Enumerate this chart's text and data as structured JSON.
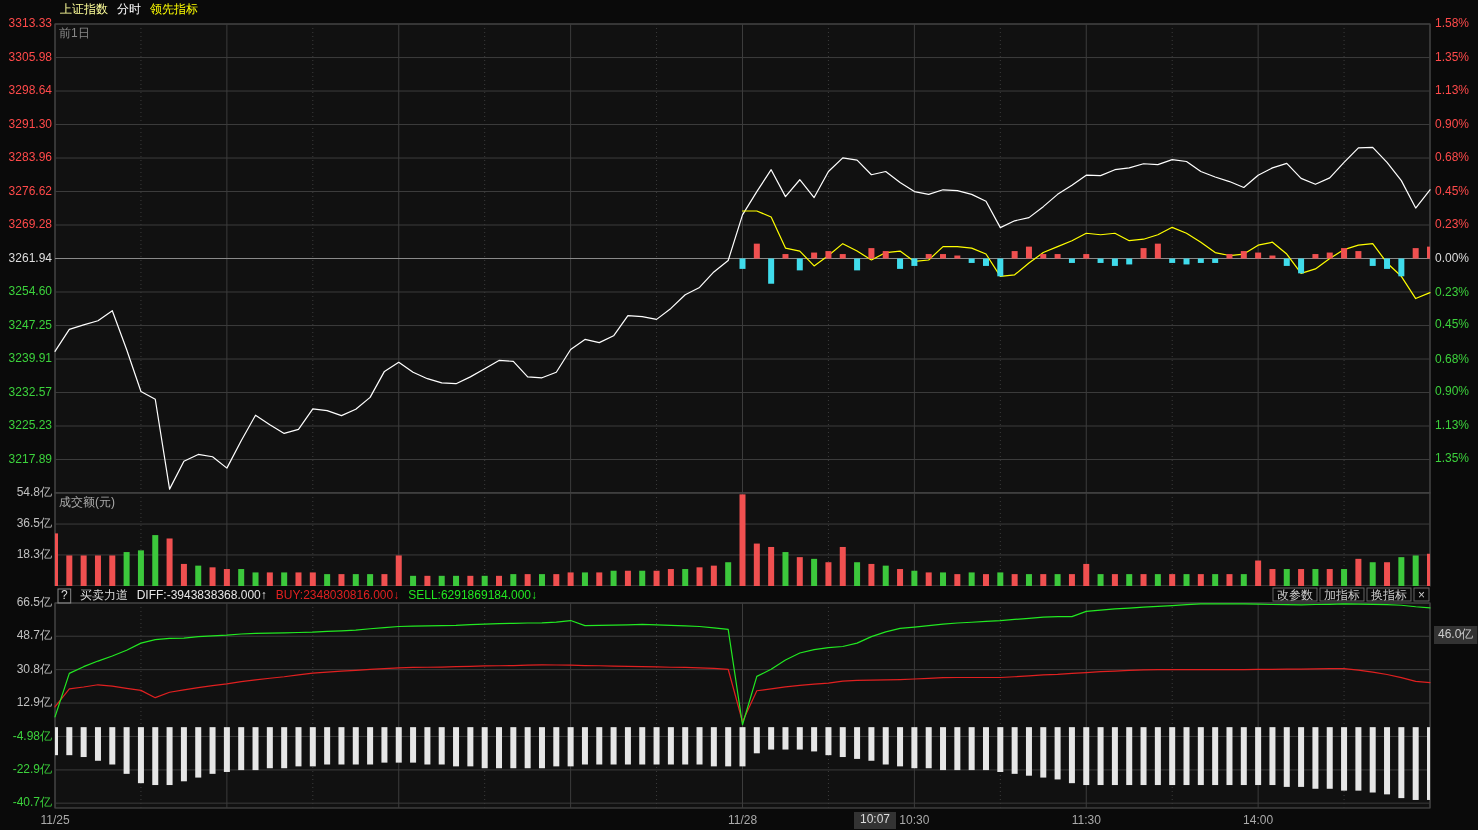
{
  "chart_data": [
    {
      "type": "line",
      "title": "上证指数",
      "legend": "top",
      "grid": true,
      "annotations": [
        "前1日"
      ],
      "tick_labels": "y",
      "categories": [
        null,
        null,
        null,
        null,
        null,
        null,
        null,
        null,
        null,
        null,
        null,
        null,
        null,
        null,
        null,
        null,
        null,
        null,
        null,
        null,
        null,
        null,
        null,
        null,
        null,
        null,
        null,
        null,
        null,
        null,
        null,
        null,
        null,
        null,
        null,
        null,
        null,
        null,
        null,
        null,
        null,
        null,
        null,
        null,
        null,
        null,
        null,
        null,
        null,
        null,
        null,
        null,
        null,
        null,
        null,
        null,
        null,
        null,
        null,
        null,
        null,
        null,
        null,
        null,
        null,
        null,
        null,
        null,
        null,
        null,
        null,
        null,
        null,
        null,
        null,
        null,
        null,
        null,
        null,
        null,
        null,
        null,
        null,
        null,
        null,
        null,
        null,
        null,
        null,
        null,
        null,
        null,
        null,
        null,
        null,
        null,
        null
      ],
      "ylim": [
        3210.55,
        3313.33
      ],
      "yticks": [
        {
          "value": 3313.33,
          "label": "3313.33"
        },
        {
          "value": 3305.98,
          "label": "3305.98"
        },
        {
          "value": 3298.64,
          "label": "3298.64"
        },
        {
          "value": 3291.3,
          "label": "3291.30"
        },
        {
          "value": 3283.96,
          "label": "3283.96"
        },
        {
          "value": 3276.62,
          "label": "3276.62"
        },
        {
          "value": 3269.28,
          "label": "3269.28"
        },
        {
          "value": 3261.94,
          "label": "3261.94"
        },
        {
          "value": 3254.6,
          "label": "3254.60"
        },
        {
          "value": 3247.25,
          "label": "3247.25"
        },
        {
          "value": 3239.91,
          "label": "3239.91"
        },
        {
          "value": 3232.57,
          "label": "3232.57"
        },
        {
          "value": 3225.23,
          "label": "3225.23"
        },
        {
          "value": 3217.89,
          "label": "3217.89"
        }
      ],
      "y2lim": [
        -1.58,
        1.58
      ],
      "y2ticks": [
        {
          "value": 1.58,
          "label": "1.58%"
        },
        {
          "value": 1.35,
          "label": "1.35%"
        },
        {
          "value": 1.13,
          "label": "1.13%"
        },
        {
          "value": 0.9,
          "label": "0.90%"
        },
        {
          "value": 0.68,
          "label": "0.68%"
        },
        {
          "value": 0.45,
          "label": "0.45%"
        },
        {
          "value": 0.23,
          "label": "0.23%"
        },
        {
          "value": 0,
          "label": "0.00%"
        },
        {
          "value": -0.23,
          "label": "0.23%"
        },
        {
          "value": -0.45,
          "label": "0.45%"
        },
        {
          "value": -0.68,
          "label": "0.68%"
        },
        {
          "value": -0.9,
          "label": "0.90%"
        },
        {
          "value": -1.13,
          "label": "1.13%"
        },
        {
          "value": -1.35,
          "label": "1.35%"
        }
      ],
      "ref_lines": [
        {
          "axis": "y",
          "value": 3261.94,
          "color": "#8a8a8a"
        }
      ],
      "series": [
        {
          "name": "分时",
          "color": "#ffffff",
          "values": [
            3241.6,
            3246.4,
            3247.4,
            3248.3,
            3250.5,
            3242.0,
            3232.8,
            3231.1,
            3211.4,
            3217.5,
            3219.0,
            3218.5,
            3216.0,
            3222.0,
            3227.6,
            3225.5,
            3223.6,
            3224.5,
            3229.0,
            3228.6,
            3227.5,
            3228.9,
            3231.5,
            3237.2,
            3239.2,
            3237.0,
            3235.6,
            3234.7,
            3234.5,
            3236.0,
            3237.8,
            3239.6,
            3239.4,
            3236.0,
            3235.8,
            3237.0,
            3242.0,
            3244.2,
            3243.5,
            3245.0,
            3249.4,
            3249.2,
            3248.6,
            3251.0,
            3254.0,
            3255.6,
            3259.0,
            3261.5,
            3271.5,
            3276.6,
            3281.4,
            3275.5,
            3279.2,
            3275.3,
            3281.0,
            3284.0,
            3283.5,
            3280.3,
            3281.0,
            3278.6,
            3276.6,
            3276.0,
            3277.0,
            3276.8,
            3276.0,
            3274.5,
            3268.7,
            3270.2,
            3270.9,
            3273.3,
            3276.0,
            3278.0,
            3280.2,
            3280.1,
            3281.4,
            3281.8,
            3282.7,
            3282.5,
            3283.6,
            3283.2,
            3281.0,
            3279.8,
            3278.8,
            3277.5,
            3280.2,
            3281.8,
            3282.8,
            3279.5,
            3278.2,
            3279.6,
            3283.0,
            3286.2,
            3286.3,
            3283.0,
            3279.0,
            3273.0,
            3277.0
          ]
        },
        {
          "name": "领先指标",
          "axis": "y2",
          "color": "#ffff00",
          "values": [
            null,
            null,
            null,
            null,
            null,
            null,
            null,
            null,
            null,
            null,
            null,
            null,
            null,
            null,
            null,
            null,
            null,
            null,
            null,
            null,
            null,
            null,
            null,
            null,
            null,
            null,
            null,
            null,
            null,
            null,
            null,
            null,
            null,
            null,
            null,
            null,
            null,
            null,
            null,
            null,
            null,
            null,
            null,
            null,
            null,
            null,
            null,
            null,
            0.32,
            0.32,
            0.28,
            0.07,
            0.05,
            -0.05,
            0.02,
            0.1,
            0.05,
            -0.01,
            0.04,
            0.05,
            -0.02,
            -0.01,
            0.08,
            0.08,
            0.07,
            0.03,
            -0.12,
            -0.11,
            -0.03,
            0.04,
            0.08,
            0.12,
            0.17,
            0.16,
            0.17,
            0.12,
            0.13,
            0.16,
            0.21,
            0.17,
            0.11,
            0.04,
            0.02,
            0.03,
            0.09,
            0.11,
            0.03,
            -0.1,
            -0.07,
            0.0,
            0.06,
            0.09,
            0.1,
            -0.03,
            -0.12,
            -0.27,
            -0.23
          ]
        },
        {
          "type": "bar",
          "axis": "y2",
          "color": "#f05050",
          "values": [
            null,
            null,
            null,
            null,
            null,
            null,
            null,
            null,
            null,
            null,
            null,
            null,
            null,
            null,
            null,
            null,
            null,
            null,
            null,
            null,
            null,
            null,
            null,
            null,
            null,
            null,
            null,
            null,
            null,
            null,
            null,
            null,
            null,
            null,
            null,
            null,
            null,
            null,
            null,
            null,
            null,
            null,
            null,
            null,
            null,
            null,
            null,
            null,
            null,
            0.1,
            null,
            0.03,
            null,
            0.04,
            0.05,
            0.03,
            null,
            0.07,
            0.05,
            null,
            null,
            0.03,
            0.03,
            0.02,
            null,
            null,
            null,
            0.05,
            0.08,
            0.03,
            0.03,
            null,
            0.03,
            null,
            null,
            null,
            0.07,
            0.1,
            null,
            null,
            null,
            null,
            0.03,
            0.05,
            0.04,
            0.02,
            null,
            null,
            0.03,
            0.04,
            0.07,
            0.05,
            null,
            null,
            null,
            0.07,
            0.08
          ]
        },
        {
          "type": "bar",
          "axis": "y2",
          "color": "#40dcec",
          "values": [
            null,
            null,
            null,
            null,
            null,
            null,
            null,
            null,
            null,
            null,
            null,
            null,
            null,
            null,
            null,
            null,
            null,
            null,
            null,
            null,
            null,
            null,
            null,
            null,
            null,
            null,
            null,
            null,
            null,
            null,
            null,
            null,
            null,
            null,
            null,
            null,
            null,
            null,
            null,
            null,
            null,
            null,
            null,
            null,
            null,
            null,
            null,
            null,
            -0.07,
            null,
            -0.17,
            null,
            -0.08,
            null,
            null,
            null,
            -0.08,
            null,
            null,
            -0.07,
            -0.05,
            null,
            null,
            null,
            -0.03,
            -0.05,
            -0.12,
            null,
            null,
            null,
            null,
            -0.03,
            null,
            -0.03,
            -0.05,
            -0.04,
            null,
            null,
            -0.03,
            -0.04,
            -0.03,
            -0.03,
            null,
            null,
            null,
            null,
            -0.05,
            -0.1,
            null,
            null,
            null,
            null,
            -0.05,
            -0.07,
            -0.12,
            null,
            null
          ]
        }
      ]
    },
    {
      "type": "bar",
      "title": "成交额(元)",
      "grid": true,
      "tick_labels": "y",
      "categories": [
        null,
        null,
        null,
        null,
        null,
        null,
        null,
        null,
        null,
        null,
        null,
        null,
        null,
        null,
        null,
        null,
        null,
        null,
        null,
        null,
        null,
        null,
        null,
        null,
        null,
        null,
        null,
        null,
        null,
        null,
        null,
        null,
        null,
        null,
        null,
        null,
        null,
        null,
        null,
        null,
        null,
        null,
        null,
        null,
        null,
        null,
        null,
        null,
        null,
        null,
        null,
        null,
        null,
        null,
        null,
        null,
        null,
        null,
        null,
        null,
        null,
        null,
        null,
        null,
        null,
        null,
        null,
        null,
        null,
        null,
        null,
        null,
        null,
        null,
        null,
        null,
        null,
        null,
        null,
        null,
        null,
        null,
        null,
        null,
        null,
        null,
        null,
        null,
        null,
        null,
        null,
        null,
        null,
        null,
        null,
        null,
        null
      ],
      "ylim": [
        0,
        54.8
      ],
      "yticks": [
        {
          "value": 18.3,
          "label": "18.3亿"
        },
        {
          "value": 36.5,
          "label": "36.5亿"
        },
        {
          "value": 54.8,
          "label": "54.8亿"
        }
      ],
      "values": [
        31,
        18,
        18,
        18,
        18,
        20,
        21,
        30,
        28,
        13,
        12,
        11,
        10,
        10,
        8,
        8,
        8,
        8,
        8,
        7,
        7,
        7,
        7,
        7,
        18,
        6,
        6,
        6,
        6,
        6,
        6,
        6,
        7,
        7,
        7,
        7,
        8,
        8,
        8,
        9,
        9,
        9,
        9,
        10,
        10,
        11,
        12,
        14,
        54,
        25,
        23,
        20,
        17,
        16,
        14,
        23,
        14,
        13,
        12,
        10,
        9,
        8,
        8,
        7,
        8,
        7,
        8,
        7,
        7,
        7,
        7,
        7,
        13,
        7,
        7,
        7,
        7,
        7,
        7,
        7,
        7,
        7,
        7,
        7,
        15,
        10,
        10,
        10,
        10,
        10,
        10,
        16,
        14,
        14,
        17,
        18,
        19
      ],
      "colors": [
        "#f05050",
        "#f05050",
        "#f05050",
        "#f05050",
        "#f05050",
        "#3cc83c",
        "#3cc83c",
        "#3cc83c",
        "#f05050",
        "#f05050",
        "#3cc83c",
        "#f05050",
        "#f05050",
        "#3cc83c",
        "#3cc83c",
        "#f05050",
        "#3cc83c",
        "#f05050",
        "#f05050",
        "#3cc83c",
        "#f05050",
        "#3cc83c",
        "#3cc83c",
        "#f05050",
        "#f05050",
        "#3cc83c",
        "#f05050",
        "#3cc83c",
        "#3cc83c",
        "#f05050",
        "#3cc83c",
        "#f05050",
        "#3cc83c",
        "#f05050",
        "#3cc83c",
        "#f05050",
        "#f05050",
        "#3cc83c",
        "#f05050",
        "#3cc83c",
        "#f05050",
        "#3cc83c",
        "#f05050",
        "#f05050",
        "#3cc83c",
        "#f05050",
        "#f05050",
        "#3cc83c",
        "#f05050",
        "#f05050",
        "#f05050",
        "#3cc83c",
        "#f05050",
        "#3cc83c",
        "#f05050",
        "#f05050",
        "#3cc83c",
        "#f05050",
        "#3cc83c",
        "#f05050",
        "#3cc83c",
        "#f05050",
        "#3cc83c",
        "#f05050",
        "#3cc83c",
        "#f05050",
        "#3cc83c",
        "#f05050",
        "#3cc83c",
        "#f05050",
        "#3cc83c",
        "#f05050",
        "#f05050",
        "#3cc83c",
        "#f05050",
        "#3cc83c",
        "#f05050",
        "#3cc83c",
        "#f05050",
        "#3cc83c",
        "#f05050",
        "#3cc83c",
        "#f05050",
        "#3cc83c",
        "#f05050",
        "#f05050",
        "#3cc83c",
        "#f05050",
        "#3cc83c",
        "#f05050",
        "#3cc83c",
        "#f05050",
        "#3cc83c",
        "#f05050",
        "#3cc83c",
        "#3cc83c",
        "#f05050"
      ]
    },
    {
      "type": "line",
      "title": "买卖力道",
      "legend": "top",
      "grid": true,
      "annotations": [
        "?",
        "改参数",
        "加指标",
        "换指标",
        "×",
        "46.0亿",
        "10:07"
      ],
      "categories": [
        "11/25",
        null,
        null,
        null,
        null,
        null,
        null,
        null,
        null,
        null,
        null,
        null,
        null,
        null,
        null,
        null,
        null,
        null,
        null,
        null,
        null,
        null,
        null,
        null,
        null,
        null,
        null,
        null,
        null,
        null,
        null,
        null,
        null,
        null,
        null,
        null,
        null,
        null,
        null,
        null,
        null,
        null,
        null,
        null,
        null,
        null,
        null,
        null,
        "11/28",
        null,
        null,
        null,
        null,
        null,
        null,
        null,
        null,
        null,
        null,
        null,
        "10:30",
        null,
        null,
        null,
        null,
        null,
        null,
        null,
        null,
        null,
        null,
        null,
        "11:30",
        null,
        null,
        null,
        null,
        null,
        null,
        null,
        null,
        null,
        null,
        null,
        "14:00",
        null,
        null,
        null,
        null,
        null,
        null,
        null,
        null,
        null,
        null,
        null,
        null
      ],
      "ylim": [
        -43.3,
        66.5
      ],
      "yticks": [
        {
          "value": 66.5,
          "label": "66.5亿"
        },
        {
          "value": 48.7,
          "label": "48.7亿"
        },
        {
          "value": 30.8,
          "label": "30.8亿"
        },
        {
          "value": 12.9,
          "label": "12.9亿"
        },
        {
          "value": -4.98,
          "label": "-4.98亿"
        },
        {
          "value": -22.9,
          "label": "-22.9亿"
        },
        {
          "value": -40.7,
          "label": "-40.7亿"
        }
      ],
      "series": [
        {
          "name": "DIFF:-3943838368.000↑",
          "type": "bar",
          "color": "#e6e6e6",
          "values": [
            -15,
            -15,
            -16,
            -18,
            -20,
            -25,
            -30,
            -31,
            -31,
            -29,
            -27,
            -25,
            -24,
            -23,
            -23,
            -22,
            -22,
            -21,
            -21,
            -20,
            -20,
            -20,
            -20,
            -19,
            -19,
            -19,
            -20,
            -20,
            -21,
            -21,
            -22,
            -22,
            -22,
            -22,
            -22,
            -21,
            -21,
            -20,
            -20,
            -20,
            -20,
            -20,
            -20,
            -20,
            -20,
            -20,
            -21,
            -21,
            -21,
            -14,
            -12,
            -12,
            -12,
            -13,
            -15,
            -16,
            -17,
            -18,
            -20,
            -21,
            -22,
            -22,
            -23,
            -23,
            -23,
            -23,
            -24,
            -25,
            -26,
            -27,
            -28,
            -30,
            -31,
            -31,
            -31,
            -31,
            -31,
            -31,
            -31,
            -31,
            -31,
            -31,
            -31,
            -31,
            -31,
            -31,
            -32,
            -32,
            -33,
            -33,
            -34,
            -34,
            -35,
            -36,
            -38,
            -39,
            -39
          ]
        },
        {
          "name": "BUY:2348030816.000↓",
          "color": "#e02020",
          "values": [
            10.8,
            20.5,
            21.5,
            22.7,
            22.0,
            20.8,
            19.7,
            15.8,
            18.7,
            20.0,
            21.2,
            22.2,
            23.2,
            24.4,
            25.3,
            26.2,
            27.0,
            28.0,
            28.9,
            29.5,
            30.0,
            30.4,
            30.9,
            31.4,
            31.8,
            32.0,
            32.1,
            32.2,
            32.4,
            32.6,
            32.8,
            32.9,
            33.0,
            33.2,
            33.4,
            33.3,
            33.2,
            33.0,
            32.9,
            32.7,
            32.6,
            32.4,
            32.3,
            32.1,
            32.0,
            31.8,
            31.5,
            31.0,
            2.9,
            19.5,
            20.5,
            21.6,
            22.4,
            23.0,
            23.6,
            24.7,
            25.1,
            25.2,
            25.3,
            25.5,
            25.8,
            26.1,
            26.5,
            26.6,
            26.6,
            26.6,
            26.6,
            27.0,
            27.5,
            28.0,
            28.3,
            28.8,
            29.2,
            29.7,
            30.0,
            30.4,
            30.7,
            30.8,
            30.8,
            30.8,
            30.8,
            30.8,
            30.8,
            30.8,
            30.9,
            31.0,
            31.1,
            31.1,
            31.2,
            31.3,
            31.3,
            30.5,
            29.5,
            28.2,
            26.5,
            24.5,
            23.9
          ]
        },
        {
          "name": "SELL:6291869184.000↓",
          "color": "#22e822",
          "values": [
            5.5,
            28.8,
            32.4,
            35.4,
            38.1,
            41.2,
            45.0,
            46.9,
            47.6,
            47.7,
            48.5,
            48.9,
            49.3,
            49.9,
            50.2,
            50.4,
            50.5,
            50.7,
            50.9,
            51.3,
            51.6,
            52.0,
            52.7,
            53.3,
            53.9,
            54.1,
            54.2,
            54.4,
            54.5,
            54.9,
            55.2,
            55.5,
            55.6,
            55.8,
            55.9,
            56.3,
            57.1,
            54.4,
            54.5,
            54.6,
            54.8,
            55.0,
            54.8,
            54.5,
            54.2,
            53.9,
            53.2,
            52.4,
            1.3,
            27.2,
            31.0,
            36.0,
            39.7,
            41.5,
            42.6,
            43.2,
            45.0,
            48.5,
            51.0,
            52.9,
            53.6,
            54.4,
            55.2,
            55.8,
            56.2,
            56.7,
            57.1,
            57.7,
            58.3,
            58.9,
            59.2,
            59.2,
            62.0,
            62.7,
            63.3,
            63.8,
            64.3,
            64.7,
            65.1,
            65.6,
            66.0,
            66.0,
            66.0,
            66.0,
            65.9,
            65.7,
            65.6,
            65.5,
            65.7,
            65.8,
            66.0,
            65.9,
            65.8,
            65.6,
            65.3,
            64.5,
            63.9
          ]
        }
      ]
    }
  ]
}
